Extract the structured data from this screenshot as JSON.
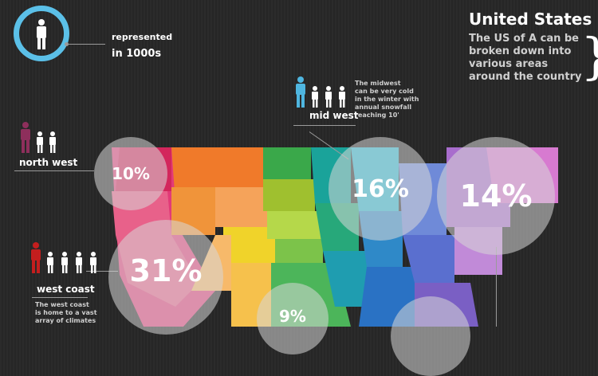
{
  "legend": {
    "line1": "represented",
    "line2": "in 1000s"
  },
  "header": {
    "title": "United States",
    "subtitle_lines": [
      "The US of A can be",
      "broken down into",
      "various areas",
      "around the country"
    ]
  },
  "regions": {
    "mid_west": {
      "label": "mid west",
      "note_lines": [
        "The midwest",
        "can be very cold",
        "in the winter with",
        "annual snowfall",
        "reaching 10'"
      ],
      "percent": "16%"
    },
    "north_west": {
      "label": "north west",
      "percent": "10%"
    },
    "west_coast": {
      "label": "west coast",
      "note_lines": [
        "The west coast",
        "is home to a vast",
        "array of climates"
      ],
      "percent": "31%"
    },
    "south_west": {
      "percent": "9%"
    },
    "north_east": {
      "percent": "14%"
    }
  },
  "colors": {
    "legend_ring": "#5bc0e8",
    "mid_west": "#4fb6e0",
    "north_west": "#8e2f5c",
    "west_coast": "#c41e1e"
  },
  "icons": [
    "person-icon",
    "brace-icon",
    "map-image"
  ]
}
